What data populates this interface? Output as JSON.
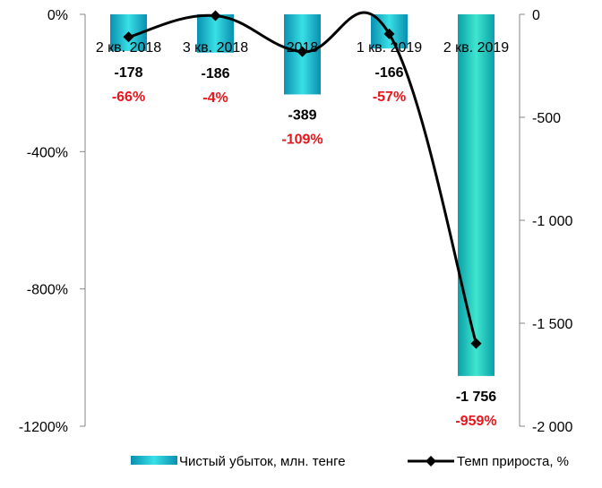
{
  "chart_data": {
    "type": "bar",
    "categories": [
      "2 кв. 2018",
      "3 кв. 2018",
      "2018",
      "1 кв. 2019",
      "2 кв. 2019"
    ],
    "series": [
      {
        "name": "Чистый убыток, млн. тенге",
        "type": "bar",
        "axis": "right",
        "values": [
          -178,
          -186,
          -389,
          -166,
          -1756
        ],
        "labels": [
          "-178",
          "-186",
          "-389",
          "-166",
          "-1 756"
        ]
      },
      {
        "name": "Темп прироста, %",
        "type": "line",
        "axis": "left",
        "values": [
          -66,
          -4,
          -109,
          -57,
          -959
        ],
        "labels": [
          "-66%",
          "-4%",
          "-109%",
          "-57%",
          "-959%"
        ]
      }
    ],
    "left_axis": {
      "ylim": [
        -1200,
        0
      ],
      "ticks": [
        0,
        -400,
        -800,
        -1200
      ],
      "tick_labels": [
        "0%",
        "-400%",
        "-800%",
        "-1200%"
      ]
    },
    "right_axis": {
      "ylim": [
        -2000,
        0
      ],
      "ticks": [
        0,
        -500,
        -1000,
        -1500,
        -2000
      ],
      "tick_labels": [
        "0",
        "-500",
        "-1 000",
        "-1 500",
        "-2 000"
      ]
    },
    "legend_position": "bottom-right",
    "colors": {
      "bar_light": "#39e0e6",
      "bar_dark": "#0a8fb0",
      "line": "#000000",
      "percent_label": "#e8151b"
    }
  }
}
